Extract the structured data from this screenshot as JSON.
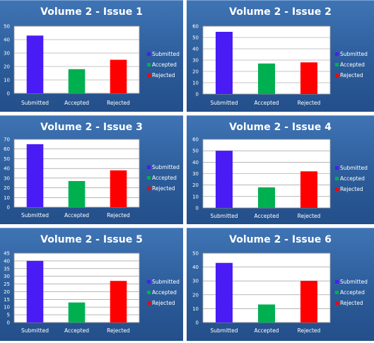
{
  "colors": {
    "submitted": "#4a1cf5",
    "accepted": "#00b050",
    "rejected": "#ff0000"
  },
  "chart_data": [
    {
      "type": "bar",
      "title": "Volume 2 - Issue 1",
      "categories": [
        "Submitted",
        "Accepted",
        "Rejected"
      ],
      "values": [
        43,
        18,
        25
      ],
      "ylim": [
        0,
        50
      ],
      "ystep": 10,
      "grid": true,
      "legend_position": "right",
      "legend": [
        "Submitted",
        "Accepted",
        "Rejected"
      ]
    },
    {
      "type": "bar",
      "title": "Volume 2 - Issue 2",
      "categories": [
        "Submitted",
        "Accepted",
        "Rejected"
      ],
      "values": [
        55,
        27,
        28
      ],
      "ylim": [
        0,
        60
      ],
      "ystep": 10,
      "grid": true,
      "legend_position": "right",
      "legend": [
        "Submitted",
        "Accepted",
        "Rejected"
      ]
    },
    {
      "type": "bar",
      "title": "Volume 2 - Issue 3",
      "categories": [
        "Submitted",
        "Accepted",
        "Rejected"
      ],
      "values": [
        65,
        27,
        38
      ],
      "ylim": [
        0,
        70
      ],
      "ystep": 10,
      "grid": true,
      "legend_position": "right",
      "legend": [
        "Submitted",
        "Accepted",
        "Rejected"
      ]
    },
    {
      "type": "bar",
      "title": "Volume 2 - Issue 4",
      "categories": [
        "Submitted",
        "Accepted",
        "Rejected"
      ],
      "values": [
        50,
        18,
        32
      ],
      "ylim": [
        0,
        60
      ],
      "ystep": 10,
      "grid": true,
      "legend_position": "right",
      "legend": [
        "Submitted",
        "Accepted",
        "Rejected"
      ]
    },
    {
      "type": "bar",
      "title": "Volume 2 - Issue 5",
      "categories": [
        "Submitted",
        "Accepted",
        "Rejected"
      ],
      "values": [
        40,
        13,
        27
      ],
      "ylim": [
        0,
        45
      ],
      "ystep": 5,
      "grid": true,
      "legend_position": "right",
      "legend": [
        "Submitted",
        "Accepted",
        "Rejected"
      ]
    },
    {
      "type": "bar",
      "title": "Volume 2 - Issue 6",
      "categories": [
        "Submitted",
        "Accepted",
        "Rejected"
      ],
      "values": [
        43,
        13,
        30
      ],
      "ylim": [
        0,
        50
      ],
      "ystep": 10,
      "grid": true,
      "legend_position": "right",
      "legend": [
        "Submitted",
        "Accepted",
        "Rejected"
      ]
    }
  ]
}
